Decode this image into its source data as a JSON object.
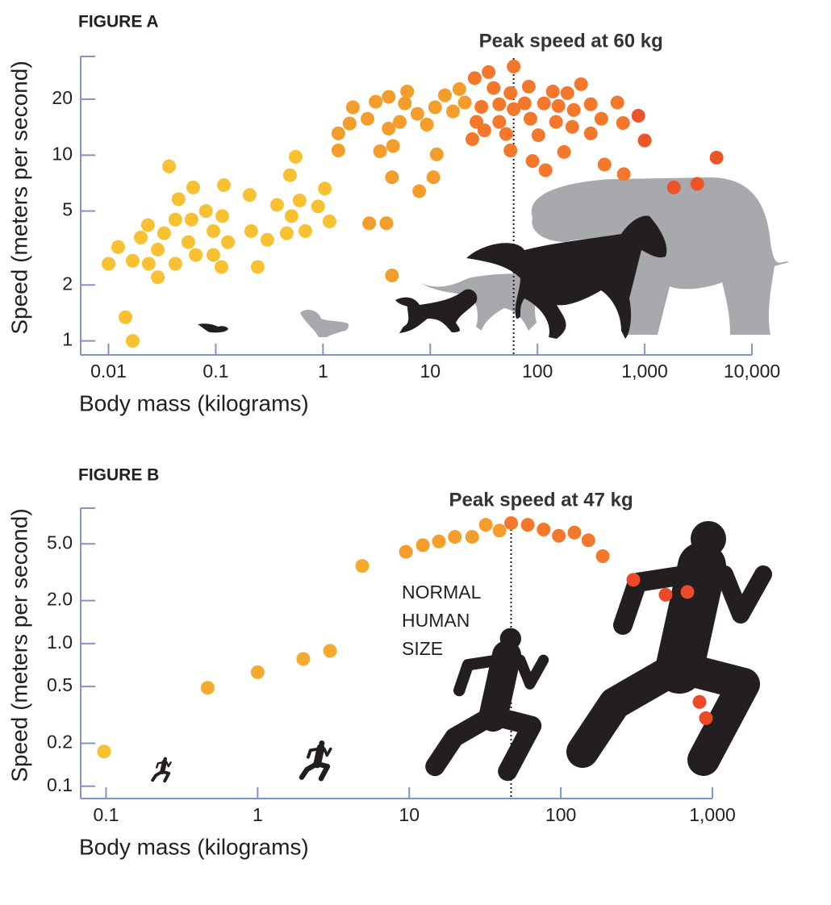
{
  "chart_data": [
    {
      "type": "scatter",
      "title": "FIGURE A",
      "ylabel": "Speed (meters per second)",
      "xlabel": "Body mass (kilograms)",
      "x_scale": "log",
      "y_scale": "log",
      "xlim": [
        0.0055,
        10000
      ],
      "xticks": [
        0.01,
        0.1,
        1,
        10,
        100,
        {
          "value": 1000,
          "label": "1,000"
        },
        {
          "value": 10000,
          "label": "10,000"
        }
      ],
      "ylim": [
        0.84,
        34
      ],
      "yticks": [
        1,
        2,
        5,
        10,
        20
      ],
      "peak": {
        "x": 60,
        "label": "Peak speed at 60 kg"
      },
      "x": [
        0.01,
        0.0123,
        0.0144,
        0.0168,
        0.0168,
        0.02,
        0.0233,
        0.0237,
        0.0288,
        0.0288,
        0.033,
        0.0367,
        0.042,
        0.042,
        0.045,
        0.0555,
        0.0595,
        0.0616,
        0.065,
        0.081,
        0.095,
        0.095,
        0.113,
        0.115,
        0.119,
        0.13,
        0.207,
        0.214,
        0.246,
        0.303,
        0.373,
        0.459,
        0.492,
        0.509,
        0.556,
        0.606,
        0.684,
        0.9,
        1.04,
        1.15,
        1.39,
        1.39,
        1.77,
        1.9,
        2.6,
        2.7,
        3.1,
        3.4,
        3.9,
        4.1,
        4.1,
        4.4,
        4.4,
        4.5,
        5.2,
        5.8,
        6.1,
        7.6,
        7.9,
        9.3,
        10.7,
        11.1,
        11.5,
        13.7,
        16.3,
        18.7,
        21,
        24.7,
        26,
        27,
        30,
        32,
        35,
        39,
        44,
        44,
        60,
        51,
        56,
        60,
        56,
        76,
        83,
        86,
        90,
        102,
        119,
        115,
        139,
        149,
        157,
        177,
        190,
        211,
        218,
        255,
        314,
        314,
        394,
        422,
        556,
        628,
        638,
        873,
        1000,
        1870,
        3090,
        4680
      ],
      "values": [
        2.6,
        3.2,
        1.34,
        1.0,
        2.7,
        3.6,
        4.2,
        2.6,
        2.2,
        3.1,
        3.8,
        8.7,
        4.5,
        2.6,
        5.8,
        3.4,
        4.5,
        6.7,
        2.9,
        5.0,
        3.9,
        2.9,
        2.5,
        4.7,
        6.9,
        3.4,
        6.1,
        3.9,
        2.5,
        3.5,
        5.4,
        3.8,
        7.8,
        4.7,
        9.8,
        5.7,
        3.9,
        5.3,
        6.6,
        4.4,
        13.1,
        10.6,
        14.8,
        18.1,
        15.7,
        4.3,
        19.4,
        10.5,
        4.3,
        13.9,
        20.6,
        2.25,
        7.6,
        11.2,
        15.1,
        19.0,
        22,
        16.7,
        6.4,
        14.6,
        7.6,
        18.1,
        10.1,
        21,
        17.2,
        22.7,
        19.2,
        12.2,
        26,
        15.1,
        18.2,
        13.6,
        28,
        23,
        18.8,
        15.1,
        30,
        13.0,
        21.6,
        17.7,
        10.6,
        19,
        23.4,
        15.7,
        9.3,
        12.8,
        8.3,
        19,
        22,
        15.1,
        18.4,
        10.4,
        21.6,
        14.2,
        17.5,
        24.1,
        18.8,
        13.1,
        15.7,
        8.9,
        19.2,
        14.9,
        7.9,
        16.3,
        12.0,
        6.7,
        7.0,
        9.7
      ],
      "colors": [
        "#f7c131",
        "#f7c131",
        "#f7c131",
        "#f7c131",
        "#f7c131",
        "#f7c131",
        "#f7c131",
        "#f7c131",
        "#f7c131",
        "#f7c131",
        "#f7c131",
        "#f7c131",
        "#f7c131",
        "#f7c131",
        "#f7c131",
        "#f7c131",
        "#f7c131",
        "#f7c131",
        "#f7c131",
        "#f7c131",
        "#f7c131",
        "#f7c131",
        "#f7c131",
        "#f7c131",
        "#f7c131",
        "#f7c131",
        "#f7c131",
        "#f7c131",
        "#f7c131",
        "#f7c131",
        "#f7c131",
        "#f7c131",
        "#f7c131",
        "#f7c131",
        "#f7c131",
        "#f7c131",
        "#f7c131",
        "#f7c131",
        "#f7c131",
        "#f7c131",
        "#f59d2a",
        "#f59d2a",
        "#f59d2a",
        "#f59d2a",
        "#f59d2a",
        "#f59d2a",
        "#f59d2a",
        "#f59d2a",
        "#f59d2a",
        "#f59d2a",
        "#f59d2a",
        "#f59d2a",
        "#f59d2a",
        "#f59d2a",
        "#f59d2a",
        "#f59d2a",
        "#f59d2a",
        "#f59d2a",
        "#f59d2a",
        "#f59d2a",
        "#f59d2a",
        "#f59d2a",
        "#f59d2a",
        "#f59d2a",
        "#f59d2a",
        "#f59d2a",
        "#f59d2a",
        "#f3782b",
        "#f3782b",
        "#f3782b",
        "#f3782b",
        "#f3782b",
        "#f3782b",
        "#f3782b",
        "#f3782b",
        "#f3782b",
        "#f3782b",
        "#f3782b",
        "#f3782b",
        "#f3782b",
        "#f3782b",
        "#f3782b",
        "#f3782b",
        "#f3782b",
        "#f3782b",
        "#f3782b",
        "#f3782b",
        "#f3782b",
        "#f3782b",
        "#f3782b",
        "#f3782b",
        "#f3782b",
        "#f3782b",
        "#f3782b",
        "#f3782b",
        "#f3782b",
        "#f3782b",
        "#f3782b",
        "#f3782b",
        "#f3782b",
        "#f3782b",
        "#f3782b",
        "#f3782b",
        "#ec5528",
        "#ec5528",
        "#ec5528",
        "#ec5528",
        "#ec5528"
      ]
    },
    {
      "type": "scatter",
      "title": "FIGURE B",
      "ylabel": "Speed (meters per second)",
      "xlabel": "Body mass (kilograms)",
      "x_scale": "log",
      "y_scale": "log",
      "xlim": [
        0.068,
        1000
      ],
      "xticks": [
        0.1,
        1,
        10,
        100,
        {
          "value": 1000,
          "label": "1,000"
        }
      ],
      "ylim": [
        0.082,
        8.9
      ],
      "yticks": [
        0.1,
        0.2,
        0.5,
        {
          "value": 1,
          "label": "1.0"
        },
        {
          "value": 2,
          "label": "2.0"
        },
        {
          "value": 5,
          "label": "5.0"
        }
      ],
      "peak": {
        "x": 47,
        "label": "Peak speed at 47 kg"
      },
      "annotation": [
        "NORMAL",
        "HUMAN",
        "SIZE"
      ],
      "x": [
        0.097,
        0.468,
        1.0,
        2.0,
        3.0,
        4.9,
        9.5,
        12.3,
        15.7,
        20,
        26,
        32,
        39.4,
        47,
        60.5,
        77,
        97,
        123,
        152,
        189,
        301,
        491,
        684,
        822,
        906
      ],
      "values": [
        0.175,
        0.49,
        0.63,
        0.78,
        0.89,
        3.5,
        4.4,
        4.9,
        5.2,
        5.6,
        5.6,
        6.8,
        6.2,
        7.0,
        6.8,
        6.3,
        5.7,
        6.0,
        5.3,
        4.1,
        2.8,
        2.2,
        2.3,
        0.39,
        0.3
      ],
      "colors": [
        "#f7c131",
        "#f5a92d",
        "#f5a92d",
        "#f5a92d",
        "#f5a92d",
        "#f5a92d",
        "#f59d2a",
        "#f59d2a",
        "#f59d2a",
        "#f59d2a",
        "#f59d2a",
        "#f59d2a",
        "#f59d2a",
        "#f3782b",
        "#f3782b",
        "#f3782b",
        "#f3782b",
        "#f3782b",
        "#f3782b",
        "#f3782b",
        "#ec4a28",
        "#ec4a28",
        "#ec4a28",
        "#ec4a28",
        "#ec4a28"
      ]
    }
  ]
}
